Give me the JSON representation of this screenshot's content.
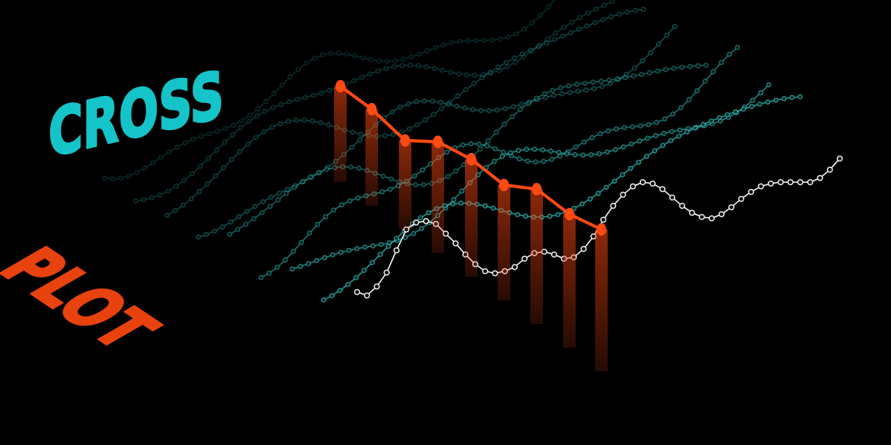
{
  "title": {
    "line1": "CROSS",
    "line2": "PLOT"
  },
  "colors": {
    "background": "#000000",
    "title_line1": "#14c4c9",
    "title_line2": "#e8420e",
    "teal_series": "#27c9c4",
    "white_series": "#f2f2f2",
    "highlight_series": "#ff4a12"
  }
}
